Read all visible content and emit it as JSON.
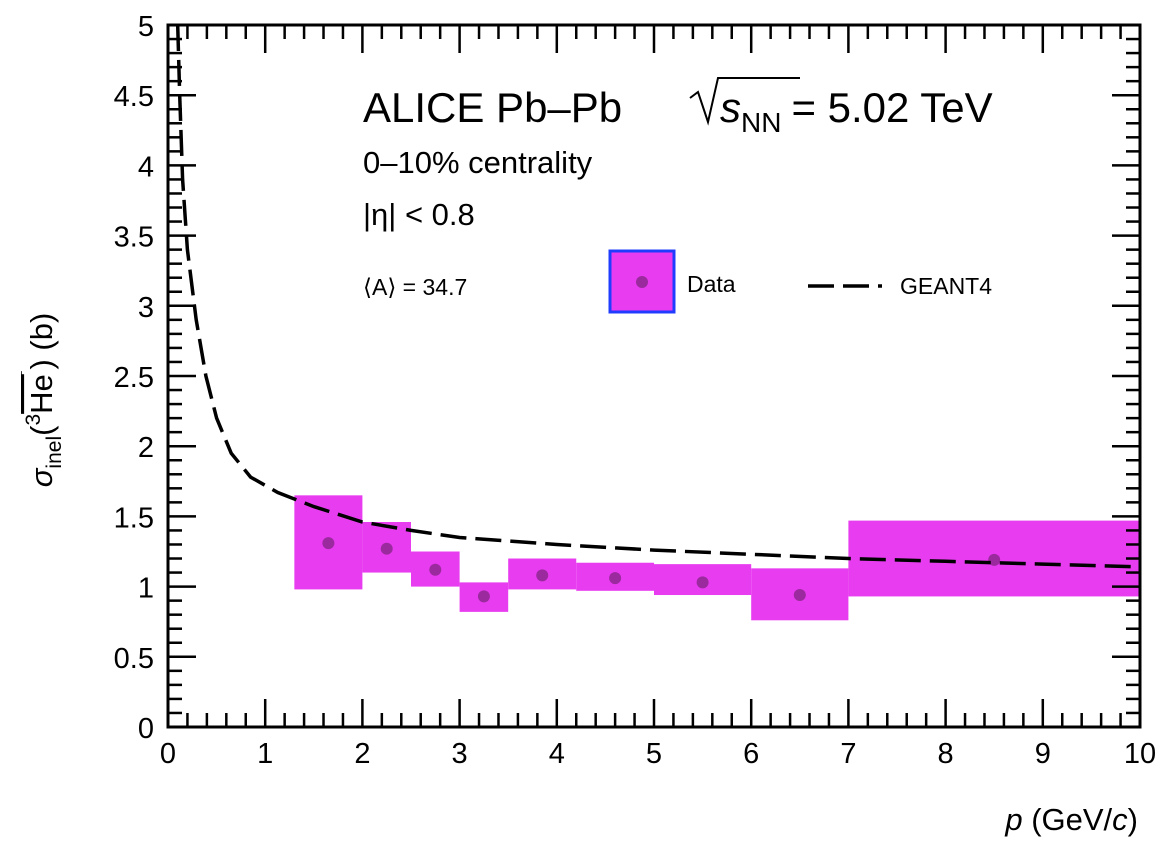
{
  "chart_data": {
    "type": "scatter",
    "title": "ALICE Pb–Pb √sNN = 5.02 TeV",
    "title_parts": {
      "experiment": "ALICE Pb–Pb",
      "sqrt": "s",
      "sub": "NN",
      "energy": "= 5.02 TeV"
    },
    "annotations": [
      "0–10% centrality",
      "|η| < 0.8",
      "⟨A⟩ = 34.7"
    ],
    "xlabel": "p (GeV/c)",
    "xlabel_parts": {
      "var": "p",
      "unit_pre": " (GeV/",
      "unit_var": "c",
      "unit_post": ")"
    },
    "ylabel": "σinel(3He‾) (b)",
    "ylabel_parts": {
      "sigma": "σ",
      "sub": "inel",
      "open": "(",
      "sup": "3",
      "particle": "He",
      "close": ") (b)"
    },
    "xlim": [
      0,
      10
    ],
    "ylim": [
      0,
      5
    ],
    "xticks": [
      "0",
      "1",
      "2",
      "3",
      "4",
      "5",
      "6",
      "7",
      "8",
      "9",
      "10"
    ],
    "yticks": [
      "0",
      "0.5",
      "1",
      "1.5",
      "2",
      "2.5",
      "3",
      "3.5",
      "4",
      "4.5",
      "5"
    ],
    "legend": {
      "placement": "top-right",
      "entries": [
        "Data",
        "GEANT4"
      ]
    },
    "colors": {
      "data_box": "#e83cf0",
      "data_point": "#9b2a9e",
      "legend_border": "#1f3cff",
      "model": "#000000"
    },
    "series": [
      {
        "name": "Data",
        "points": [
          {
            "x": 1.65,
            "y": 1.31,
            "xlo": 1.3,
            "xhi": 2.0,
            "ylo": 0.98,
            "yhi": 1.65
          },
          {
            "x": 2.25,
            "y": 1.27,
            "xlo": 2.0,
            "xhi": 2.5,
            "ylo": 1.1,
            "yhi": 1.46
          },
          {
            "x": 2.75,
            "y": 1.12,
            "xlo": 2.5,
            "xhi": 3.0,
            "ylo": 1.0,
            "yhi": 1.25
          },
          {
            "x": 3.25,
            "y": 0.93,
            "xlo": 3.0,
            "xhi": 3.5,
            "ylo": 0.82,
            "yhi": 1.03
          },
          {
            "x": 3.85,
            "y": 1.08,
            "xlo": 3.5,
            "xhi": 4.2,
            "ylo": 0.98,
            "yhi": 1.2
          },
          {
            "x": 4.6,
            "y": 1.06,
            "xlo": 4.2,
            "xhi": 5.0,
            "ylo": 0.97,
            "yhi": 1.17
          },
          {
            "x": 5.5,
            "y": 1.03,
            "xlo": 5.0,
            "xhi": 6.0,
            "ylo": 0.94,
            "yhi": 1.16
          },
          {
            "x": 6.5,
            "y": 0.94,
            "xlo": 6.0,
            "xhi": 7.0,
            "ylo": 0.76,
            "yhi": 1.13
          },
          {
            "x": 8.5,
            "y": 1.19,
            "xlo": 7.0,
            "xhi": 10.0,
            "ylo": 0.93,
            "yhi": 1.47
          }
        ]
      },
      {
        "name": "GEANT4",
        "type": "line",
        "style": "dashed",
        "x": [
          0.1,
          0.12,
          0.15,
          0.2,
          0.29,
          0.39,
          0.5,
          0.65,
          0.85,
          1.13,
          1.5,
          2,
          2.5,
          3,
          4,
          5,
          6,
          7,
          8,
          9,
          10
        ],
        "y": [
          5.0,
          4.5,
          3.9,
          3.4,
          2.9,
          2.5,
          2.2,
          1.95,
          1.78,
          1.67,
          1.57,
          1.46,
          1.4,
          1.35,
          1.3,
          1.26,
          1.23,
          1.2,
          1.18,
          1.16,
          1.14
        ]
      }
    ]
  }
}
